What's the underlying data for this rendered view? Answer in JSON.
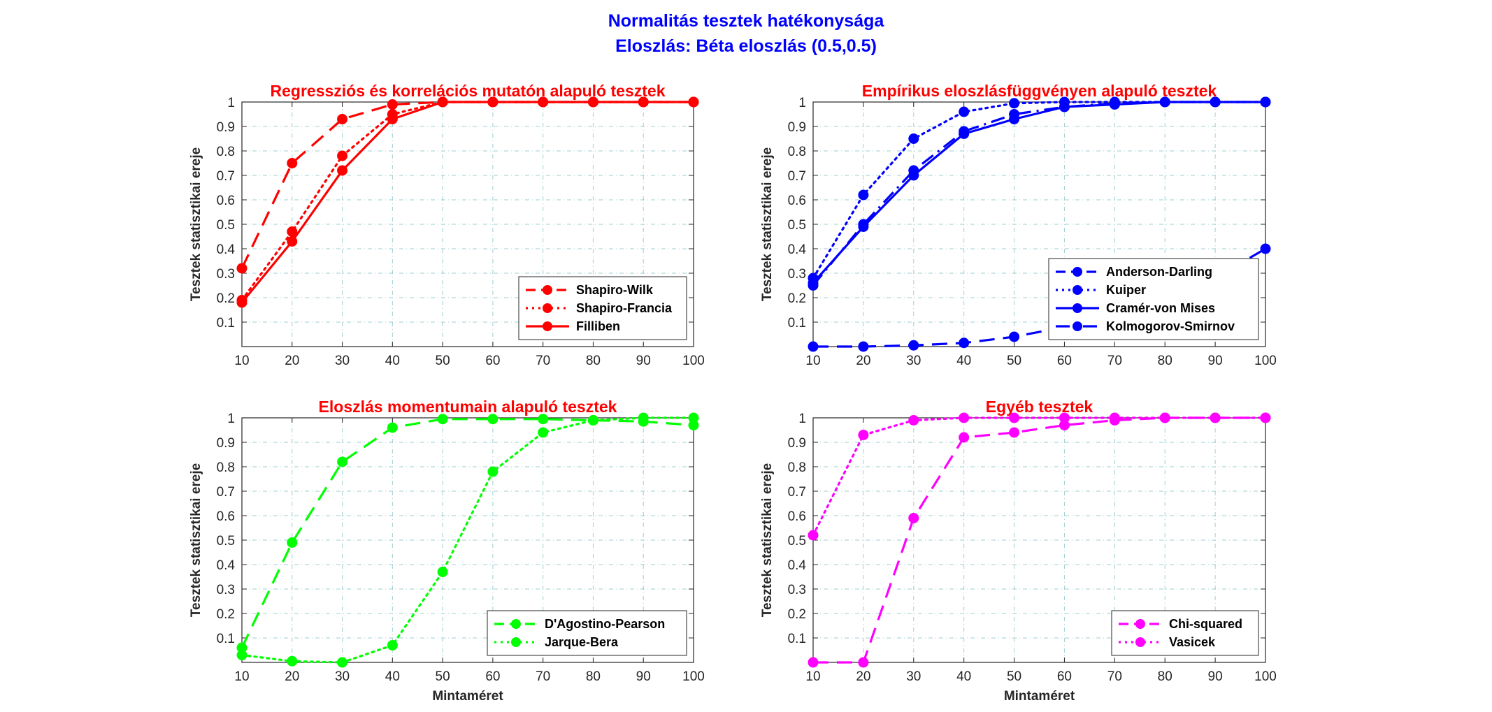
{
  "figure": {
    "title_line1": "Normalitás tesztek hatékonysága",
    "title_line2": "Eloszlás: Béta eloszlás (0.5,0.5)",
    "title_color": "#0000ff"
  },
  "chart_data": [
    {
      "type": "line",
      "title": "Regressziós és korrelációs mutatón alapuló tesztek",
      "title_color": "#ff0000",
      "xlabel": "",
      "ylabel": "Tesztek statisztikai ereje",
      "x": [
        10,
        20,
        30,
        40,
        50,
        60,
        70,
        80,
        90,
        100
      ],
      "xlim": [
        10,
        100
      ],
      "ylim": [
        0,
        1
      ],
      "xticks": [
        "10",
        "20",
        "30",
        "40",
        "50",
        "60",
        "70",
        "80",
        "90",
        "100"
      ],
      "yticks": [
        "0.1",
        "0.2",
        "0.3",
        "0.4",
        "0.5",
        "0.6",
        "0.7",
        "0.8",
        "0.9",
        "1"
      ],
      "grid": true,
      "legend_position": "bottom-right",
      "series": [
        {
          "name": "Shapiro-Wilk",
          "style": "dashed",
          "color": "#ff0000",
          "values": [
            0.32,
            0.75,
            0.93,
            0.99,
            1.0,
            1.0,
            1.0,
            1.0,
            1.0,
            1.0
          ]
        },
        {
          "name": "Shapiro-Francia",
          "style": "dotted",
          "color": "#ff0000",
          "values": [
            0.19,
            0.47,
            0.78,
            0.95,
            1.0,
            1.0,
            1.0,
            1.0,
            1.0,
            1.0
          ]
        },
        {
          "name": "Filliben",
          "style": "solid",
          "color": "#ff0000",
          "values": [
            0.18,
            0.43,
            0.72,
            0.93,
            1.0,
            1.0,
            1.0,
            1.0,
            1.0,
            1.0
          ]
        }
      ]
    },
    {
      "type": "line",
      "title": "Empírikus eloszlásfüggvényen alapuló tesztek",
      "title_color": "#ff0000",
      "xlabel": "",
      "ylabel": "Tesztek statisztikai ereje",
      "x": [
        10,
        20,
        30,
        40,
        50,
        60,
        70,
        80,
        90,
        100
      ],
      "xlim": [
        10,
        100
      ],
      "ylim": [
        0,
        1
      ],
      "xticks": [
        "10",
        "20",
        "30",
        "40",
        "50",
        "60",
        "70",
        "80",
        "90",
        "100"
      ],
      "yticks": [
        "0.1",
        "0.2",
        "0.3",
        "0.4",
        "0.5",
        "0.6",
        "0.7",
        "0.8",
        "0.9",
        "1"
      ],
      "grid": true,
      "legend_position": "bottom-right",
      "series": [
        {
          "name": "Anderson-Darling",
          "style": "dashed",
          "color": "#0000ff",
          "values": [
            0.0,
            0.0,
            0.005,
            0.015,
            0.04,
            0.08,
            0.14,
            0.19,
            0.28,
            0.4
          ]
        },
        {
          "name": "Kuiper",
          "style": "dotted",
          "color": "#0000ff",
          "values": [
            0.28,
            0.62,
            0.85,
            0.96,
            0.995,
            1.0,
            1.0,
            1.0,
            1.0,
            1.0
          ]
        },
        {
          "name": "Cramér-von Mises",
          "style": "solid",
          "color": "#0000ff",
          "values": [
            0.26,
            0.49,
            0.7,
            0.87,
            0.93,
            0.98,
            0.99,
            1.0,
            1.0,
            1.0
          ]
        },
        {
          "name": "Kolmogorov-Smirnov",
          "style": "dashdot",
          "color": "#0000ff",
          "values": [
            0.25,
            0.5,
            0.72,
            0.88,
            0.95,
            0.98,
            0.995,
            1.0,
            1.0,
            1.0
          ]
        }
      ]
    },
    {
      "type": "line",
      "title": "Eloszlás momentumain alapuló tesztek",
      "title_color": "#ff0000",
      "xlabel": "Mintaméret",
      "ylabel": "Tesztek statisztikai ereje",
      "x": [
        10,
        20,
        30,
        40,
        50,
        60,
        70,
        80,
        90,
        100
      ],
      "xlim": [
        10,
        100
      ],
      "ylim": [
        0,
        1
      ],
      "xticks": [
        "10",
        "20",
        "30",
        "40",
        "50",
        "60",
        "70",
        "80",
        "90",
        "100"
      ],
      "yticks": [
        "0.1",
        "0.2",
        "0.3",
        "0.4",
        "0.5",
        "0.6",
        "0.7",
        "0.8",
        "0.9",
        "1"
      ],
      "grid": true,
      "legend_position": "bottom-right",
      "series": [
        {
          "name": "D'Agostino-Pearson",
          "style": "dashed",
          "color": "#00ff00",
          "values": [
            0.06,
            0.49,
            0.82,
            0.96,
            0.995,
            0.995,
            0.995,
            0.99,
            0.985,
            0.97
          ]
        },
        {
          "name": "Jarque-Bera",
          "style": "dotted",
          "color": "#00ff00",
          "values": [
            0.03,
            0.005,
            0.0,
            0.07,
            0.37,
            0.78,
            0.94,
            0.99,
            1.0,
            1.0
          ]
        }
      ]
    },
    {
      "type": "line",
      "title": "Egyéb tesztek",
      "title_color": "#ff0000",
      "xlabel": "Mintaméret",
      "ylabel": "Tesztek statisztikai ereje",
      "x": [
        10,
        20,
        30,
        40,
        50,
        60,
        70,
        80,
        90,
        100
      ],
      "xlim": [
        10,
        100
      ],
      "ylim": [
        0,
        1
      ],
      "xticks": [
        "10",
        "20",
        "30",
        "40",
        "50",
        "60",
        "70",
        "80",
        "90",
        "100"
      ],
      "yticks": [
        "0.1",
        "0.2",
        "0.3",
        "0.4",
        "0.5",
        "0.6",
        "0.7",
        "0.8",
        "0.9",
        "1"
      ],
      "grid": true,
      "legend_position": "bottom-right",
      "series": [
        {
          "name": "Chi-squared",
          "style": "dashed",
          "color": "#ff00ff",
          "values": [
            0.0,
            0.0,
            0.59,
            0.92,
            0.94,
            0.97,
            0.99,
            1.0,
            1.0,
            1.0
          ]
        },
        {
          "name": "Vasicek",
          "style": "dotted",
          "color": "#ff00ff",
          "values": [
            0.52,
            0.93,
            0.99,
            1.0,
            1.0,
            1.0,
            1.0,
            1.0,
            1.0,
            1.0
          ]
        }
      ]
    }
  ]
}
